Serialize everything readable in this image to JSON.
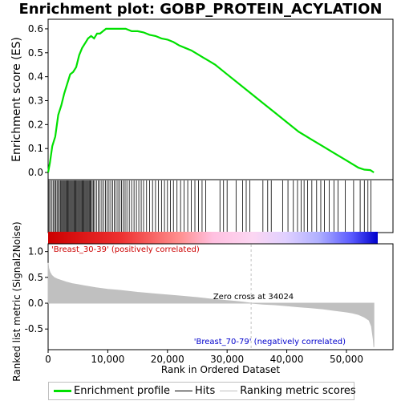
{
  "title": "Enrichment plot: GOBP_PROTEIN_ACYLATION",
  "colors": {
    "es_line": "#00e000",
    "hit": "#000000",
    "metric_fill": "#c0c0c0",
    "pos_label": "#cc0000",
    "neg_label": "#0000cc",
    "zero_line": "#c0c0c0"
  },
  "legend": {
    "enrichment_profile": "Enrichment profile",
    "hits": "Hits",
    "ranking_metric": "Ranking metric scores"
  },
  "chart_data": [
    {
      "type": "line",
      "name": "enrichment_score",
      "ylabel": "Enrichment score (ES)",
      "ylim": [
        -0.03,
        0.64
      ],
      "xlim": [
        0,
        57800
      ],
      "yticks": [
        "0.0",
        "0.1",
        "0.2",
        "0.3",
        "0.4",
        "0.5",
        "0.6"
      ],
      "ytick_values": [
        0.0,
        0.1,
        0.2,
        0.3,
        0.4,
        0.5,
        0.6
      ],
      "grid": false,
      "series": [
        {
          "x": [
            0,
            300,
            700,
            1200,
            1700,
            2200,
            2700,
            3200,
            3700,
            4200,
            4700,
            5200,
            5700,
            6200,
            6700,
            7200,
            7700,
            8200,
            8700,
            9200,
            9700,
            10200,
            10700,
            11200,
            11700,
            12200,
            13000,
            14000,
            15000,
            16000,
            17000,
            18000,
            19000,
            20000,
            21000,
            22000,
            23000,
            24000,
            25000,
            26000,
            27000,
            28000,
            30000,
            32000,
            34000,
            36000,
            38000,
            40000,
            42000,
            44000,
            46000,
            48000,
            50000,
            51000,
            52000,
            53000,
            54000,
            54600
          ],
          "y": [
            0.0,
            0.04,
            0.11,
            0.15,
            0.24,
            0.28,
            0.33,
            0.37,
            0.41,
            0.42,
            0.44,
            0.49,
            0.52,
            0.54,
            0.56,
            0.57,
            0.56,
            0.58,
            0.58,
            0.59,
            0.6,
            0.6,
            0.6,
            0.6,
            0.6,
            0.6,
            0.6,
            0.59,
            0.59,
            0.585,
            0.575,
            0.57,
            0.56,
            0.555,
            0.545,
            0.53,
            0.52,
            0.51,
            0.495,
            0.48,
            0.465,
            0.45,
            0.41,
            0.37,
            0.33,
            0.29,
            0.25,
            0.21,
            0.17,
            0.14,
            0.11,
            0.08,
            0.05,
            0.035,
            0.02,
            0.012,
            0.01,
            0.0
          ]
        }
      ]
    },
    {
      "type": "scatter",
      "name": "hits",
      "hits_x": [
        150,
        400,
        650,
        900,
        1100,
        1300,
        1500,
        1700,
        1900,
        2100,
        2250,
        2400,
        2550,
        2700,
        2850,
        3000,
        3150,
        3300,
        3450,
        3600,
        3750,
        3900,
        4050,
        4200,
        4350,
        4500,
        4650,
        4800,
        4950,
        5100,
        5250,
        5400,
        5550,
        5700,
        5850,
        6000,
        6150,
        6300,
        6450,
        6600,
        6750,
        6900,
        7050,
        7200,
        7400,
        7600,
        7800,
        8100,
        8400,
        8700,
        9000,
        9300,
        9600,
        9900,
        10200,
        10500,
        10800,
        11100,
        11400,
        11700,
        12000,
        12300,
        12600,
        12900,
        13200,
        13600,
        14000,
        14400,
        14800,
        15200,
        15600,
        16000,
        16500,
        17000,
        17500,
        18000,
        18500,
        19000,
        19500,
        20000,
        20500,
        21000,
        21600,
        22200,
        22800,
        23400,
        24000,
        24600,
        25200,
        25800,
        26400,
        28800,
        29400,
        30000,
        31500,
        32600,
        33200,
        33800,
        36000,
        36800,
        37400,
        39300,
        40200,
        41100,
        41800,
        42400,
        42900,
        43500,
        44200,
        45000,
        45700,
        46300,
        47100,
        47900,
        48600,
        49800,
        51200,
        52300,
        53000,
        53600,
        54100
      ]
    },
    {
      "type": "area",
      "name": "ranking_metric",
      "ylabel": "Ranked list metric (Signal2Noise)",
      "xlabel": "Rank in Ordered Dataset",
      "xlim": [
        0,
        57800
      ],
      "ylim": [
        -0.9,
        1.15
      ],
      "xticks": [
        "0",
        "10,000",
        "20,000",
        "30,000",
        "40,000",
        "50,000"
      ],
      "xtick_values": [
        0,
        10000,
        20000,
        30000,
        40000,
        50000
      ],
      "yticks": [
        "1.0",
        "0.5",
        "0.0",
        "-0.5"
      ],
      "ytick_values": [
        1.0,
        0.5,
        0.0,
        -0.5
      ],
      "x": [
        0,
        100,
        300,
        600,
        1000,
        1500,
        2000,
        3000,
        4000,
        5000,
        6000,
        8000,
        10000,
        12000,
        15000,
        18000,
        20000,
        22000,
        25000,
        28000,
        30000,
        32000,
        34024,
        36000,
        38000,
        40000,
        42000,
        44000,
        46000,
        48000,
        50000,
        51000,
        52000,
        53000,
        53800,
        54200,
        54500,
        54600
      ],
      "values": [
        0.78,
        0.68,
        0.6,
        0.54,
        0.5,
        0.47,
        0.45,
        0.41,
        0.38,
        0.36,
        0.34,
        0.3,
        0.27,
        0.25,
        0.21,
        0.18,
        0.16,
        0.14,
        0.11,
        0.07,
        0.05,
        0.03,
        0.0,
        -0.02,
        -0.03,
        -0.05,
        -0.07,
        -0.09,
        -0.11,
        -0.14,
        -0.17,
        -0.19,
        -0.22,
        -0.27,
        -0.33,
        -0.45,
        -0.7,
        -0.85
      ],
      "zero_cross_label": "Zero cross at 34024",
      "zero_cross_x": 34024,
      "pos_label": "'Breast_30-39' (positively correlated)",
      "neg_label": "'Breast_70-79' (negatively correlated)"
    }
  ]
}
